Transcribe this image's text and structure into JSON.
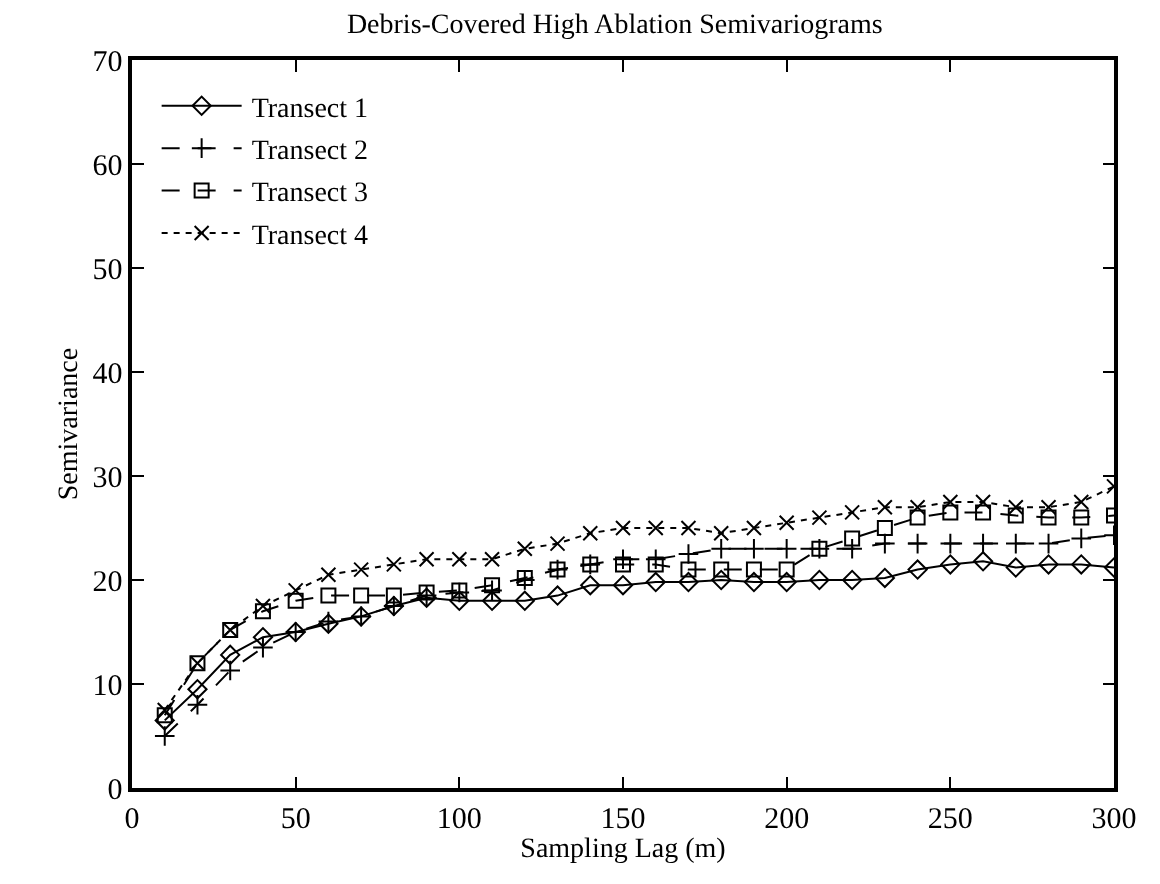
{
  "chart_data": {
    "type": "line",
    "title": "Debris-Covered High Ablation Semivariograms",
    "xlabel": "Sampling Lag (m)",
    "ylabel": "Semivariance",
    "x": [
      10,
      20,
      30,
      40,
      50,
      60,
      70,
      80,
      90,
      100,
      110,
      120,
      130,
      140,
      150,
      160,
      170,
      180,
      190,
      200,
      210,
      220,
      230,
      240,
      250,
      260,
      270,
      280,
      290,
      300
    ],
    "xlim": [
      0,
      300
    ],
    "xticks": [
      0,
      50,
      100,
      150,
      200,
      250,
      300
    ],
    "ylim": [
      0,
      70
    ],
    "yticks": [
      0,
      10,
      20,
      30,
      40,
      50,
      60,
      70
    ],
    "legend": "top left",
    "series": [
      {
        "name": "Transect 1",
        "color": "#000000",
        "marker": "diamond",
        "line_style": "solid",
        "values": [
          6.5,
          9.5,
          12.8,
          14.5,
          15,
          15.8,
          16.5,
          17.5,
          18.3,
          18,
          18,
          18,
          18.5,
          19.5,
          19.5,
          19.8,
          19.8,
          20,
          19.8,
          19.8,
          20,
          20,
          20.2,
          21,
          21.5,
          21.8,
          21.2,
          21.5,
          21.5,
          21.2
        ]
      },
      {
        "name": "Transect 2",
        "color": "#000000",
        "marker": "cross",
        "line_style": "dashed",
        "values": [
          5,
          8,
          11.3,
          13.5,
          15,
          16,
          16.5,
          17.5,
          18.5,
          18.8,
          19,
          20,
          21,
          21.5,
          22,
          22,
          22.5,
          23,
          23,
          23,
          23,
          23,
          23.5,
          23.5,
          23.5,
          23.5,
          23.5,
          23.5,
          24,
          24.3
        ]
      },
      {
        "name": "Transect 3",
        "color": "#000000",
        "marker": "square",
        "line_style": "dashed",
        "values": [
          7,
          12,
          15.2,
          17,
          18,
          18.5,
          18.5,
          18.5,
          18.8,
          19,
          19.5,
          20.2,
          21,
          21.5,
          21.5,
          21.5,
          21,
          21,
          21,
          21,
          23,
          24,
          25,
          26,
          26.5,
          26.5,
          26.2,
          26,
          26,
          26.2
        ]
      },
      {
        "name": "Transect 4",
        "color": "#000000",
        "marker": "x",
        "line_style": "dotted",
        "values": [
          7.5,
          12,
          15.2,
          17.5,
          19,
          20.5,
          21,
          21.5,
          22,
          22,
          22,
          23,
          23.5,
          24.5,
          25,
          25,
          25,
          24.5,
          25,
          25.5,
          26,
          26.5,
          27,
          27,
          27.5,
          27.5,
          27,
          27,
          27.5,
          29
        ]
      }
    ]
  }
}
